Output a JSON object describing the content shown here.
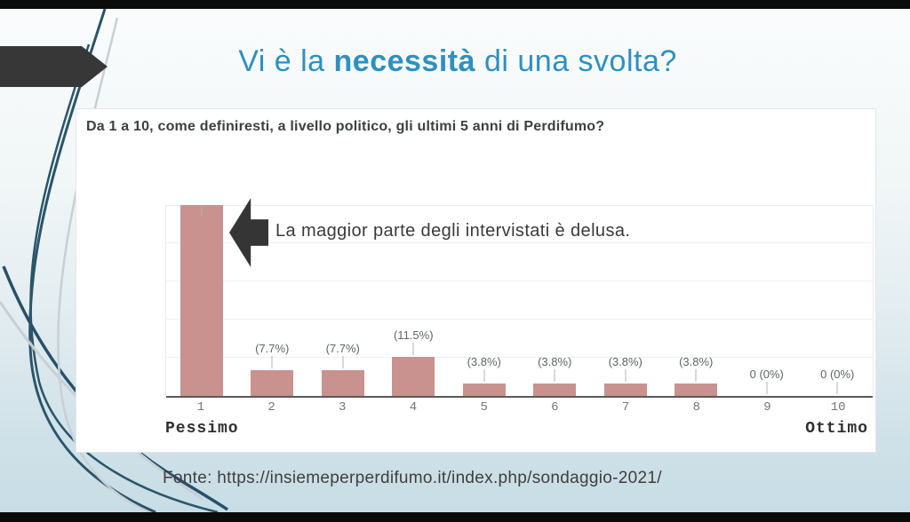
{
  "colors": {
    "title_accent": "#2e90c0",
    "bar": "#c9928e",
    "arrow_shape": "#373737",
    "letterbox": "#0b0b0b",
    "background_top": "#fafcfc",
    "background_bottom": "#c8dde6",
    "axis_line": "#5a5a5a",
    "wisp_dark": "#2a5569",
    "wisp_light": "#c7d0d4"
  },
  "slide": {
    "title": {
      "prefix": "Vi è la ",
      "bold": "necessità",
      "suffix": " di una svolta?"
    },
    "footer_text": "Fonte: https://insiemeperperdifumo.it/index.php/sondaggio-2021/"
  },
  "card": {
    "question": "Da 1 a 10, come definiresti, a livello politico, gli ultimi 5 anni di Perdifumo?",
    "annotation": "La maggior parte degli intervistati è delusa."
  },
  "chart_data": {
    "type": "bar",
    "title": "Da 1 a 10, come definiresti, a livello politico, gli ultimi 5 anni di Perdifumo?",
    "categories": [
      "1",
      "2",
      "3",
      "4",
      "5",
      "6",
      "7",
      "8",
      "9",
      "10"
    ],
    "values": [
      57.7,
      7.7,
      7.7,
      11.5,
      3.8,
      3.8,
      3.8,
      3.8,
      0,
      0
    ],
    "value_labels": [
      "",
      "(7.7%)",
      "(7.7%)",
      "(11.5%)",
      "(3.8%)",
      "(3.8%)",
      "(3.8%)",
      "(3.8%)",
      "0 (0%)",
      "0 (0%)"
    ],
    "xlabel_left": "Pessimo",
    "xlabel_right": "Ottimo",
    "ylim": [
      0,
      57
    ],
    "grid": true,
    "legend": "none",
    "bar_color": "#c9928e"
  }
}
